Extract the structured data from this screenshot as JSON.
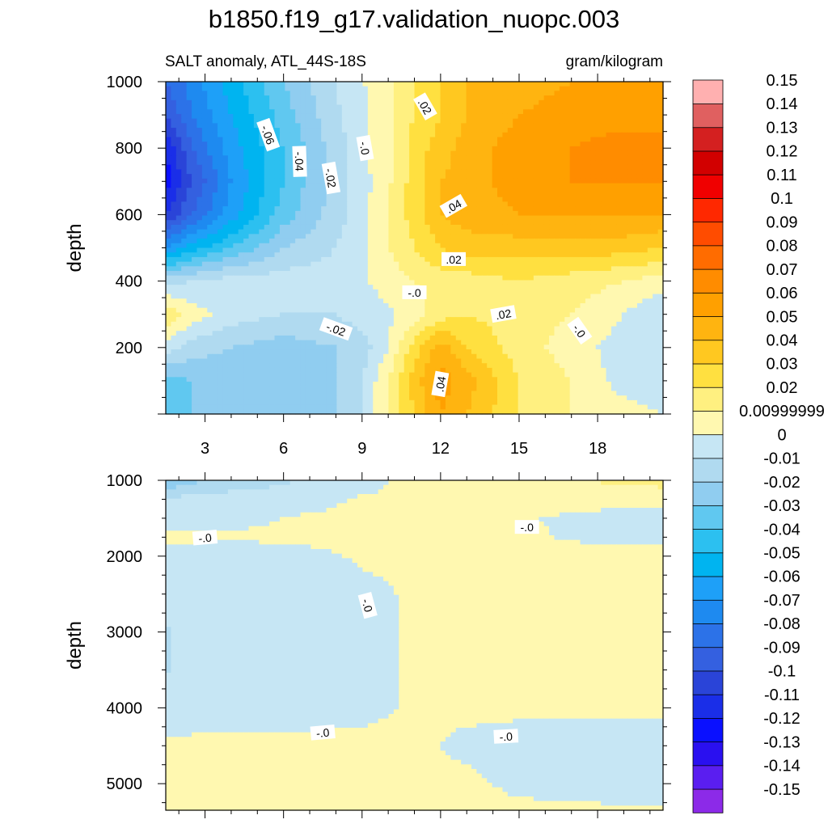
{
  "title": "b1850.f19_g17.validation_nuopc.003",
  "subtitle_left": "SALT anomaly, ATL_44S-18S",
  "subtitle_right": "gram/kilogram",
  "chart_data": [
    {
      "type": "heatmap",
      "panel": "upper",
      "ylabel": "depth",
      "xlim": [
        1.5,
        20.5
      ],
      "ylim": [
        1000,
        0
      ],
      "x_ticks": [
        3,
        6,
        9,
        12,
        15,
        18
      ],
      "x_tick_labels": [
        "3",
        "6",
        "9",
        "12",
        "15",
        "18"
      ],
      "y_ticks": [
        200,
        400,
        600,
        800,
        1000
      ],
      "y_tick_labels": [
        "200",
        "400",
        "600",
        "800",
        "1000"
      ],
      "x": [
        1.5,
        2.5,
        4,
        6,
        8,
        9,
        10,
        11,
        12,
        13,
        15,
        17,
        19,
        20.5
      ],
      "y": [
        0,
        100,
        200,
        300,
        400,
        500,
        600,
        700,
        800,
        900,
        1000
      ],
      "z": [
        [
          -0.035,
          -0.03,
          -0.025,
          -0.02,
          -0.02,
          -0.01,
          0.01,
          0.03,
          0.05,
          0.04,
          0.02,
          0.01,
          0.005,
          0.0
        ],
        [
          -0.035,
          -0.03,
          -0.025,
          -0.025,
          -0.02,
          -0.01,
          0.01,
          0.035,
          0.055,
          0.045,
          0.02,
          0.01,
          -0.005,
          -0.01
        ],
        [
          -0.005,
          -0.015,
          -0.02,
          -0.025,
          -0.02,
          -0.015,
          0.0,
          0.025,
          0.045,
          0.03,
          0.015,
          0.005,
          -0.005,
          -0.01
        ],
        [
          0.02,
          0.005,
          -0.005,
          -0.01,
          -0.01,
          -0.005,
          -0.002,
          0.005,
          0.015,
          0.02,
          0.015,
          0.01,
          0.0,
          -0.01
        ],
        [
          -0.015,
          -0.01,
          -0.005,
          -0.005,
          -0.005,
          -0.002,
          0.005,
          0.01,
          0.015,
          0.015,
          0.02,
          0.015,
          0.01,
          0.005
        ],
        [
          -0.07,
          -0.055,
          -0.04,
          -0.02,
          -0.01,
          -0.002,
          0.01,
          0.02,
          0.03,
          0.035,
          0.035,
          0.035,
          0.035,
          0.03
        ],
        [
          -0.11,
          -0.09,
          -0.065,
          -0.035,
          -0.015,
          -0.004,
          0.01,
          0.025,
          0.04,
          0.045,
          0.05,
          0.05,
          0.05,
          0.05
        ],
        [
          -0.125,
          -0.1,
          -0.07,
          -0.04,
          -0.015,
          -0.004,
          0.008,
          0.025,
          0.04,
          0.045,
          0.055,
          0.06,
          0.06,
          0.06
        ],
        [
          -0.12,
          -0.09,
          -0.065,
          -0.04,
          -0.015,
          -0.003,
          0.008,
          0.025,
          0.035,
          0.045,
          0.055,
          0.06,
          0.065,
          0.065
        ],
        [
          -0.1,
          -0.08,
          -0.06,
          -0.035,
          -0.012,
          -0.002,
          0.008,
          0.02,
          0.03,
          0.04,
          0.05,
          0.055,
          0.055,
          0.055
        ],
        [
          -0.09,
          -0.075,
          -0.055,
          -0.03,
          -0.01,
          -0.001,
          0.008,
          0.02,
          0.03,
          0.04,
          0.045,
          0.05,
          0.05,
          0.05
        ]
      ],
      "contour_labels": [
        {
          "text": ".04",
          "x": 12.0,
          "y": 90,
          "rotate": -80
        },
        {
          "text": "-.02",
          "x": 8.0,
          "y": 255,
          "rotate": 20
        },
        {
          "text": "-.0",
          "x": 17.3,
          "y": 250,
          "rotate": 55
        },
        {
          "text": ".02",
          "x": 14.4,
          "y": 300,
          "rotate": -10
        },
        {
          "text": "-.0",
          "x": 11.0,
          "y": 365,
          "rotate": 0
        },
        {
          "text": ".02",
          "x": 12.5,
          "y": 465,
          "rotate": 0
        },
        {
          "text": ".04",
          "x": 12.5,
          "y": 625,
          "rotate": -30
        },
        {
          "text": "-.02",
          "x": 7.8,
          "y": 710,
          "rotate": 80
        },
        {
          "text": "-.04",
          "x": 6.6,
          "y": 760,
          "rotate": 88
        },
        {
          "text": "-.0",
          "x": 9.1,
          "y": 800,
          "rotate": 80
        },
        {
          "text": "-.06",
          "x": 5.4,
          "y": 840,
          "rotate": 70
        },
        {
          "text": ".02",
          "x": 11.4,
          "y": 925,
          "rotate": 60
        }
      ]
    },
    {
      "type": "heatmap",
      "panel": "lower",
      "ylabel": "depth",
      "xlim": [
        1.5,
        20.5
      ],
      "ylim": [
        1000,
        5350
      ],
      "x_ticks": [
        3,
        6,
        9,
        12,
        15,
        18
      ],
      "x_tick_labels": [
        "",
        "",
        "",
        "",
        "",
        ""
      ],
      "y_ticks": [
        1000,
        2000,
        3000,
        4000,
        5000
      ],
      "y_tick_labels": [
        "1000",
        "2000",
        "3000",
        "4000",
        "5000"
      ],
      "x": [
        1.5,
        3,
        5,
        7,
        9,
        11,
        13,
        15,
        17,
        19,
        20.5
      ],
      "y": [
        1000,
        1250,
        1500,
        1750,
        2000,
        2500,
        3000,
        3500,
        4000,
        4500,
        5000,
        5350
      ],
      "z": [
        [
          -0.03,
          -0.02,
          -0.015,
          -0.008,
          -0.004,
          0.003,
          0.006,
          0.008,
          0.01,
          0.012,
          0.015
        ],
        [
          -0.008,
          -0.006,
          -0.004,
          -0.003,
          0.001,
          0.002,
          0.002,
          0.002,
          0.002,
          0.002,
          0.002
        ],
        [
          -0.003,
          -0.002,
          -0.001,
          0.001,
          0.002,
          0.002,
          0.001,
          0.0005,
          -0.0008,
          -0.002,
          -0.002
        ],
        [
          0.001,
          0.001,
          0.001,
          0.002,
          0.002,
          0.002,
          0.002,
          0.001,
          -0.0005,
          -0.0015,
          -0.002
        ],
        [
          -0.002,
          -0.003,
          -0.003,
          -0.002,
          0.001,
          0.002,
          0.002,
          0.002,
          0.002,
          0.002,
          0.002
        ],
        [
          -0.006,
          -0.004,
          -0.003,
          -0.003,
          -0.002,
          0.001,
          0.002,
          0.002,
          0.002,
          0.002,
          0.002
        ],
        [
          -0.011,
          -0.005,
          -0.004,
          -0.003,
          -0.002,
          0.001,
          0.002,
          0.002,
          0.002,
          0.002,
          0.002
        ],
        [
          -0.011,
          -0.005,
          -0.004,
          -0.003,
          -0.002,
          0.001,
          0.002,
          0.002,
          0.002,
          0.002,
          0.002
        ],
        [
          -0.006,
          -0.004,
          -0.003,
          -0.003,
          -0.002,
          0.001,
          0.002,
          0.002,
          0.002,
          0.002,
          0.002
        ],
        [
          0.002,
          0.002,
          0.002,
          0.002,
          0.002,
          0.002,
          -0.002,
          -0.004,
          -0.004,
          -0.004,
          -0.004
        ],
        [
          0.002,
          0.002,
          0.002,
          0.002,
          0.002,
          0.002,
          0.002,
          -0.002,
          -0.004,
          -0.004,
          -0.004
        ],
        [
          0.002,
          0.002,
          0.002,
          0.002,
          0.002,
          0.002,
          0.002,
          0.002,
          0.002,
          0.001,
          0.001
        ]
      ],
      "contour_labels": [
        {
          "text": "-.0",
          "x": 3.0,
          "y": 1760,
          "rotate": -5
        },
        {
          "text": "-.0",
          "x": 15.3,
          "y": 1620,
          "rotate": 0
        },
        {
          "text": "-.0",
          "x": 9.2,
          "y": 2650,
          "rotate": 75
        },
        {
          "text": "-.0",
          "x": 7.5,
          "y": 4330,
          "rotate": -5
        },
        {
          "text": "-.0",
          "x": 14.5,
          "y": 4380,
          "rotate": -3
        }
      ]
    }
  ],
  "colorbar": {
    "levels": [
      -0.15,
      -0.14,
      -0.13,
      -0.12,
      -0.11,
      -0.1,
      -0.09,
      -0.08,
      -0.07,
      -0.06,
      -0.05,
      -0.04,
      -0.03,
      -0.02,
      -0.01,
      0,
      0.00999999,
      0.02,
      0.03,
      0.04,
      0.05,
      0.06,
      0.07,
      0.08,
      0.09,
      0.1,
      0.11,
      0.12,
      0.13,
      0.14,
      0.15
    ],
    "labels": [
      "-0.15",
      "-0.14",
      "-0.13",
      "-0.12",
      "-0.11",
      "-0.1",
      "-0.09",
      "-0.08",
      "-0.07",
      "-0.06",
      "-0.05",
      "-0.04",
      "-0.03",
      "-0.02",
      "-0.01",
      "0",
      "0.00999999",
      "0.02",
      "0.03",
      "0.04",
      "0.05",
      "0.06",
      "0.07",
      "0.08",
      "0.09",
      "0.1",
      "0.11",
      "0.12",
      "0.13",
      "0.14",
      "0.15"
    ],
    "colors": [
      "#8c2ae8",
      "#5a1ef0",
      "#2a10f0",
      "#0a10ff",
      "#1a2ee8",
      "#2a44d8",
      "#3460e0",
      "#2c72e8",
      "#1e8af0",
      "#1ea0f8",
      "#00b4f0",
      "#2cc0f0",
      "#60c8f0",
      "#90cdf0",
      "#b0daf0",
      "#c6e6f4",
      "#fff8b0",
      "#fff080",
      "#ffe040",
      "#ffc820",
      "#ffb410",
      "#ffa000",
      "#ff8c00",
      "#ff6c00",
      "#ff4c00",
      "#ff2800",
      "#f00000",
      "#d20000",
      "#d42020",
      "#e06060",
      "#ffb0b0"
    ]
  }
}
